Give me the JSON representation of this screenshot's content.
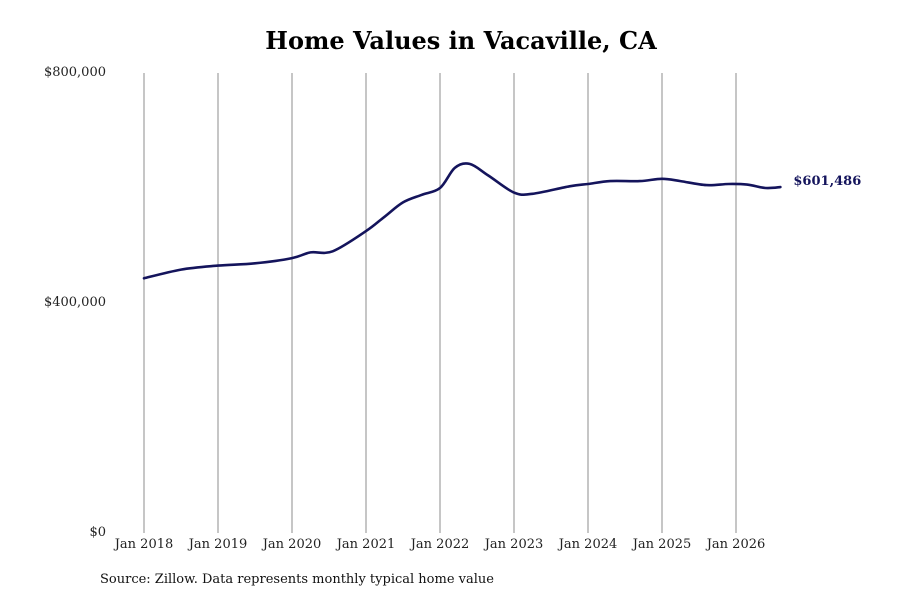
{
  "chart_data": {
    "type": "line",
    "title": "Home Values in Vacaville, CA",
    "source": "Source: Zillow. Data represents monthly typical home value",
    "xlabel": "",
    "ylabel": "",
    "yticks": [
      {
        "value": 800000,
        "label": "$800,000"
      },
      {
        "value": 400000,
        "label": "$400,000"
      },
      {
        "value": 0,
        "label": "$0"
      }
    ],
    "xticks": [
      {
        "year": 2018,
        "label": "Jan 2018"
      },
      {
        "year": 2019,
        "label": "Jan 2019"
      },
      {
        "year": 2020,
        "label": "Jan 2020"
      },
      {
        "year": 2021,
        "label": "Jan 2021"
      },
      {
        "year": 2022,
        "label": "Jan 2022"
      },
      {
        "year": 2023,
        "label": "Jan 2023"
      },
      {
        "year": 2024,
        "label": "Jan 2024"
      },
      {
        "year": 2025,
        "label": "Jan 2025"
      },
      {
        "year": 2026,
        "label": "Jan 2026"
      }
    ],
    "ylim": [
      0,
      800000
    ],
    "xlim": [
      2018,
      2026.85
    ],
    "grid": {
      "vertical": true,
      "horizontal": false
    },
    "line_color": "#14145c",
    "grid_color": "#8c8c8c",
    "end_label": "$601,486",
    "series": [
      {
        "x": [
          2018.0,
          2018.5,
          2019.0,
          2019.5,
          2020.0,
          2020.25,
          2020.55,
          2021.0,
          2021.25,
          2021.5,
          2021.75,
          2022.0,
          2022.2,
          2022.4,
          2022.65,
          2023.0,
          2023.25,
          2023.75,
          2024.0,
          2024.3,
          2024.7,
          2025.0,
          2025.25,
          2025.6,
          2025.9,
          2026.15,
          2026.4,
          2026.6
        ],
        "y": [
          443000,
          458000,
          465000,
          469000,
          478000,
          488000,
          490000,
          525000,
          550000,
          575000,
          588000,
          600000,
          635000,
          642000,
          622000,
          592000,
          590000,
          603000,
          607000,
          612000,
          612000,
          616000,
          612000,
          605000,
          607000,
          606000,
          600000,
          601486
        ]
      }
    ]
  }
}
